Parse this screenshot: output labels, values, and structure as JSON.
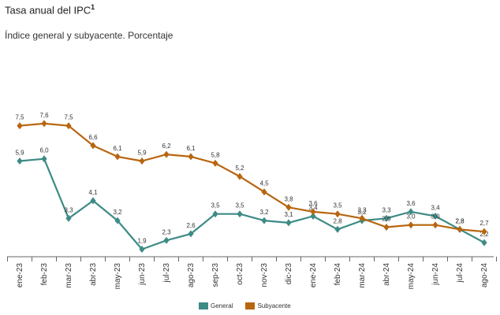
{
  "header": {
    "title": "Tasa anual del IPC",
    "title_sup": "1",
    "subtitle": "Índice general y subyacente. Porcentaje"
  },
  "chart_data": {
    "type": "line",
    "categories": [
      "ene-23",
      "feb-23",
      "mar-23",
      "abr-23",
      "may-23",
      "jun-23",
      "jul-23",
      "ago-23",
      "sep-23",
      "oct-23",
      "nov-23",
      "dic-23",
      "ene-24",
      "feb-24",
      "mar-24",
      "abr-24",
      "may-24",
      "jun-24",
      "jul-24",
      "ago-24"
    ],
    "series": [
      {
        "name": "General",
        "color": "#3d8b86",
        "values": [
          5.9,
          6.0,
          3.3,
          4.1,
          3.2,
          1.9,
          2.3,
          2.6,
          3.5,
          3.5,
          3.2,
          3.1,
          3.4,
          2.8,
          3.2,
          3.3,
          3.6,
          3.4,
          2.8,
          2.2
        ],
        "labels": [
          "5,9",
          "6,0",
          "3,3",
          "4,1",
          "3,2",
          "1,9",
          "2,3",
          "2,6",
          "3,5",
          "3,5",
          "3,2",
          "3,1",
          "3,4",
          "2,8",
          "3,2",
          "3,3",
          "3,6",
          "3,4",
          "2,8",
          "2,2"
        ]
      },
      {
        "name": "Subyacente",
        "color": "#b8650f",
        "values": [
          7.5,
          7.6,
          7.5,
          6.6,
          6.1,
          5.9,
          6.2,
          6.1,
          5.8,
          5.2,
          4.5,
          3.8,
          3.6,
          3.5,
          3.3,
          2.9,
          3.0,
          3.0,
          2.8,
          2.7
        ],
        "labels": [
          "7,5",
          "7,6",
          "7,5",
          "6,6",
          "6,1",
          "5,9",
          "6,2",
          "6,1",
          "5,8",
          "5,2",
          "4,5",
          "3,8",
          "3,6",
          "3,5",
          "3,3",
          "2,9",
          "3,0",
          "3,0",
          "2,8",
          "2,7"
        ]
      }
    ],
    "legend_position": "bottom",
    "grid": false
  }
}
